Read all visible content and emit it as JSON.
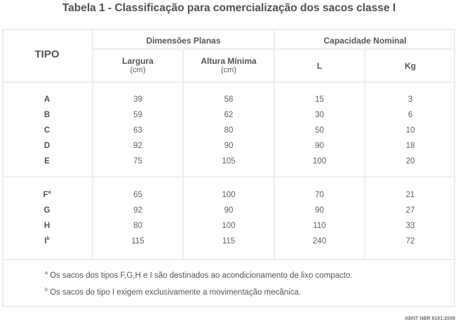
{
  "title": "Tabela 1 - Classificação para comercialização dos sacos classe I",
  "header": {
    "tipo": "TIPO",
    "dimensoes": "Dimensões Planas",
    "capacidade": "Capacidade Nominal",
    "largura": "Largura",
    "largura_unit": "(cm)",
    "altura": "Altura Mínima",
    "altura_unit": "(cm)",
    "litros": "L",
    "kg": "Kg"
  },
  "group1": [
    {
      "tipo": "A",
      "sup": "",
      "largura": "39",
      "altura": "58",
      "l": "15",
      "kg": "3"
    },
    {
      "tipo": "B",
      "sup": "",
      "largura": "59",
      "altura": "62",
      "l": "30",
      "kg": "6"
    },
    {
      "tipo": "C",
      "sup": "",
      "largura": "63",
      "altura": "80",
      "l": "50",
      "kg": "10"
    },
    {
      "tipo": "D",
      "sup": "",
      "largura": "92",
      "altura": "90",
      "l": "90",
      "kg": "18"
    },
    {
      "tipo": "E",
      "sup": "",
      "largura": "75",
      "altura": "105",
      "l": "100",
      "kg": "20"
    }
  ],
  "group2": [
    {
      "tipo": "F",
      "sup": "a",
      "largura": "65",
      "altura": "100",
      "l": "70",
      "kg": "21"
    },
    {
      "tipo": "G",
      "sup": "",
      "largura": "92",
      "altura": "90",
      "l": "90",
      "kg": "27"
    },
    {
      "tipo": "H",
      "sup": "",
      "largura": "80",
      "altura": "100",
      "l": "110",
      "kg": "33"
    },
    {
      "tipo": "I",
      "sup": "b",
      "largura": "115",
      "altura": "115",
      "l": "240",
      "kg": "72"
    }
  ],
  "notes": [
    {
      "mark": "a",
      "text": "Os sacos dos tipos F,G,H e I são destinados ao acondicionamento de lixo compacto."
    },
    {
      "mark": "b",
      "text": "Os sacos do tipo I exigem exclusivamente a movimentação mecânica."
    }
  ],
  "source": "ABNT NBR 9191:2008"
}
